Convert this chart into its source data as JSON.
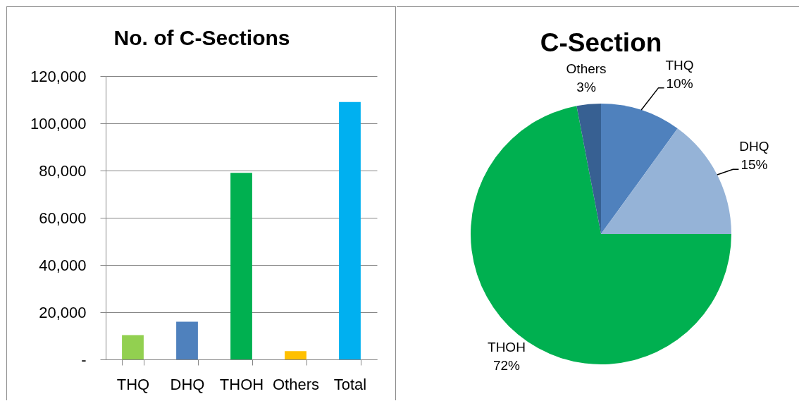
{
  "chart_data": [
    {
      "type": "bar",
      "title": "No. of C-Sections",
      "categories": [
        "THQ",
        "DHQ",
        "THOH",
        "Others",
        "Total"
      ],
      "values": [
        10300,
        16000,
        79000,
        3500,
        109000
      ],
      "colors": [
        "#92d050",
        "#4f81bd",
        "#00b050",
        "#ffc000",
        "#00b0f0"
      ],
      "ylim": [
        0,
        120000
      ],
      "yticks": [
        {
          "value": 0,
          "label": "-"
        },
        {
          "value": 20000,
          "label": "20,000"
        },
        {
          "value": 40000,
          "label": "40,000"
        },
        {
          "value": 60000,
          "label": "60,000"
        },
        {
          "value": 80000,
          "label": "80,000"
        },
        {
          "value": 100000,
          "label": "100,000"
        },
        {
          "value": 120000,
          "label": "120,000"
        }
      ],
      "grid": "y"
    },
    {
      "type": "pie",
      "title": "C-Section",
      "categories": [
        "THQ",
        "DHQ",
        "THOH",
        "Others"
      ],
      "values": [
        10,
        15,
        72,
        3
      ],
      "colors": [
        "#4f81bd",
        "#95b3d7",
        "#00b050",
        "#376092"
      ],
      "value_labels": [
        "10%",
        "15%",
        "72%",
        "3%"
      ]
    }
  ]
}
